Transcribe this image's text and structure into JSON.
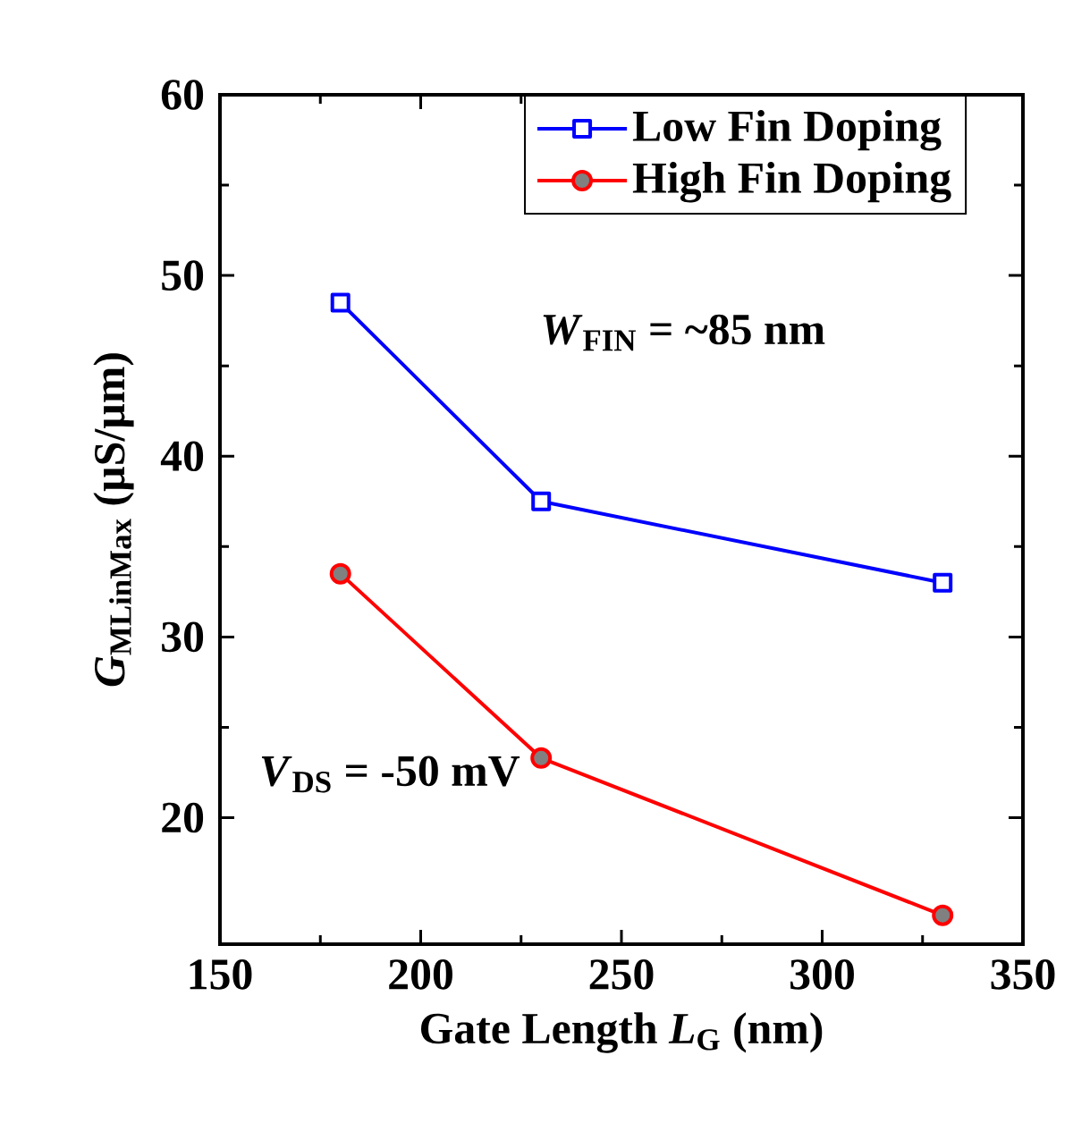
{
  "chart_data": {
    "type": "line",
    "xlabel": "Gate Length *L*$_{G}$ (nm)",
    "ylabel": "*G*$_{MLinMax}$  (µS/µm)",
    "x": [
      180,
      230,
      330
    ],
    "series": [
      {
        "name": "Low Fin Doping",
        "color": "#0000ff",
        "values": [
          48.5,
          37.5,
          33.0
        ],
        "marker": "square"
      },
      {
        "name": "High Fin Doping",
        "color": "#ff0000",
        "values": [
          33.5,
          23.3,
          14.6
        ],
        "marker": "circle"
      }
    ],
    "xlim": [
      150,
      350
    ],
    "xticks": [
      150,
      200,
      250,
      300,
      350
    ],
    "ylim": [
      13,
      60
    ],
    "yticks": [
      20,
      30,
      40,
      50,
      60
    ],
    "legend": "top right",
    "grid": false,
    "line_style": "solid",
    "annotations": [
      "*W*$_{FIN}$ = ~85 nm",
      "*V*$_{DS}$ = -50 mV"
    ]
  }
}
